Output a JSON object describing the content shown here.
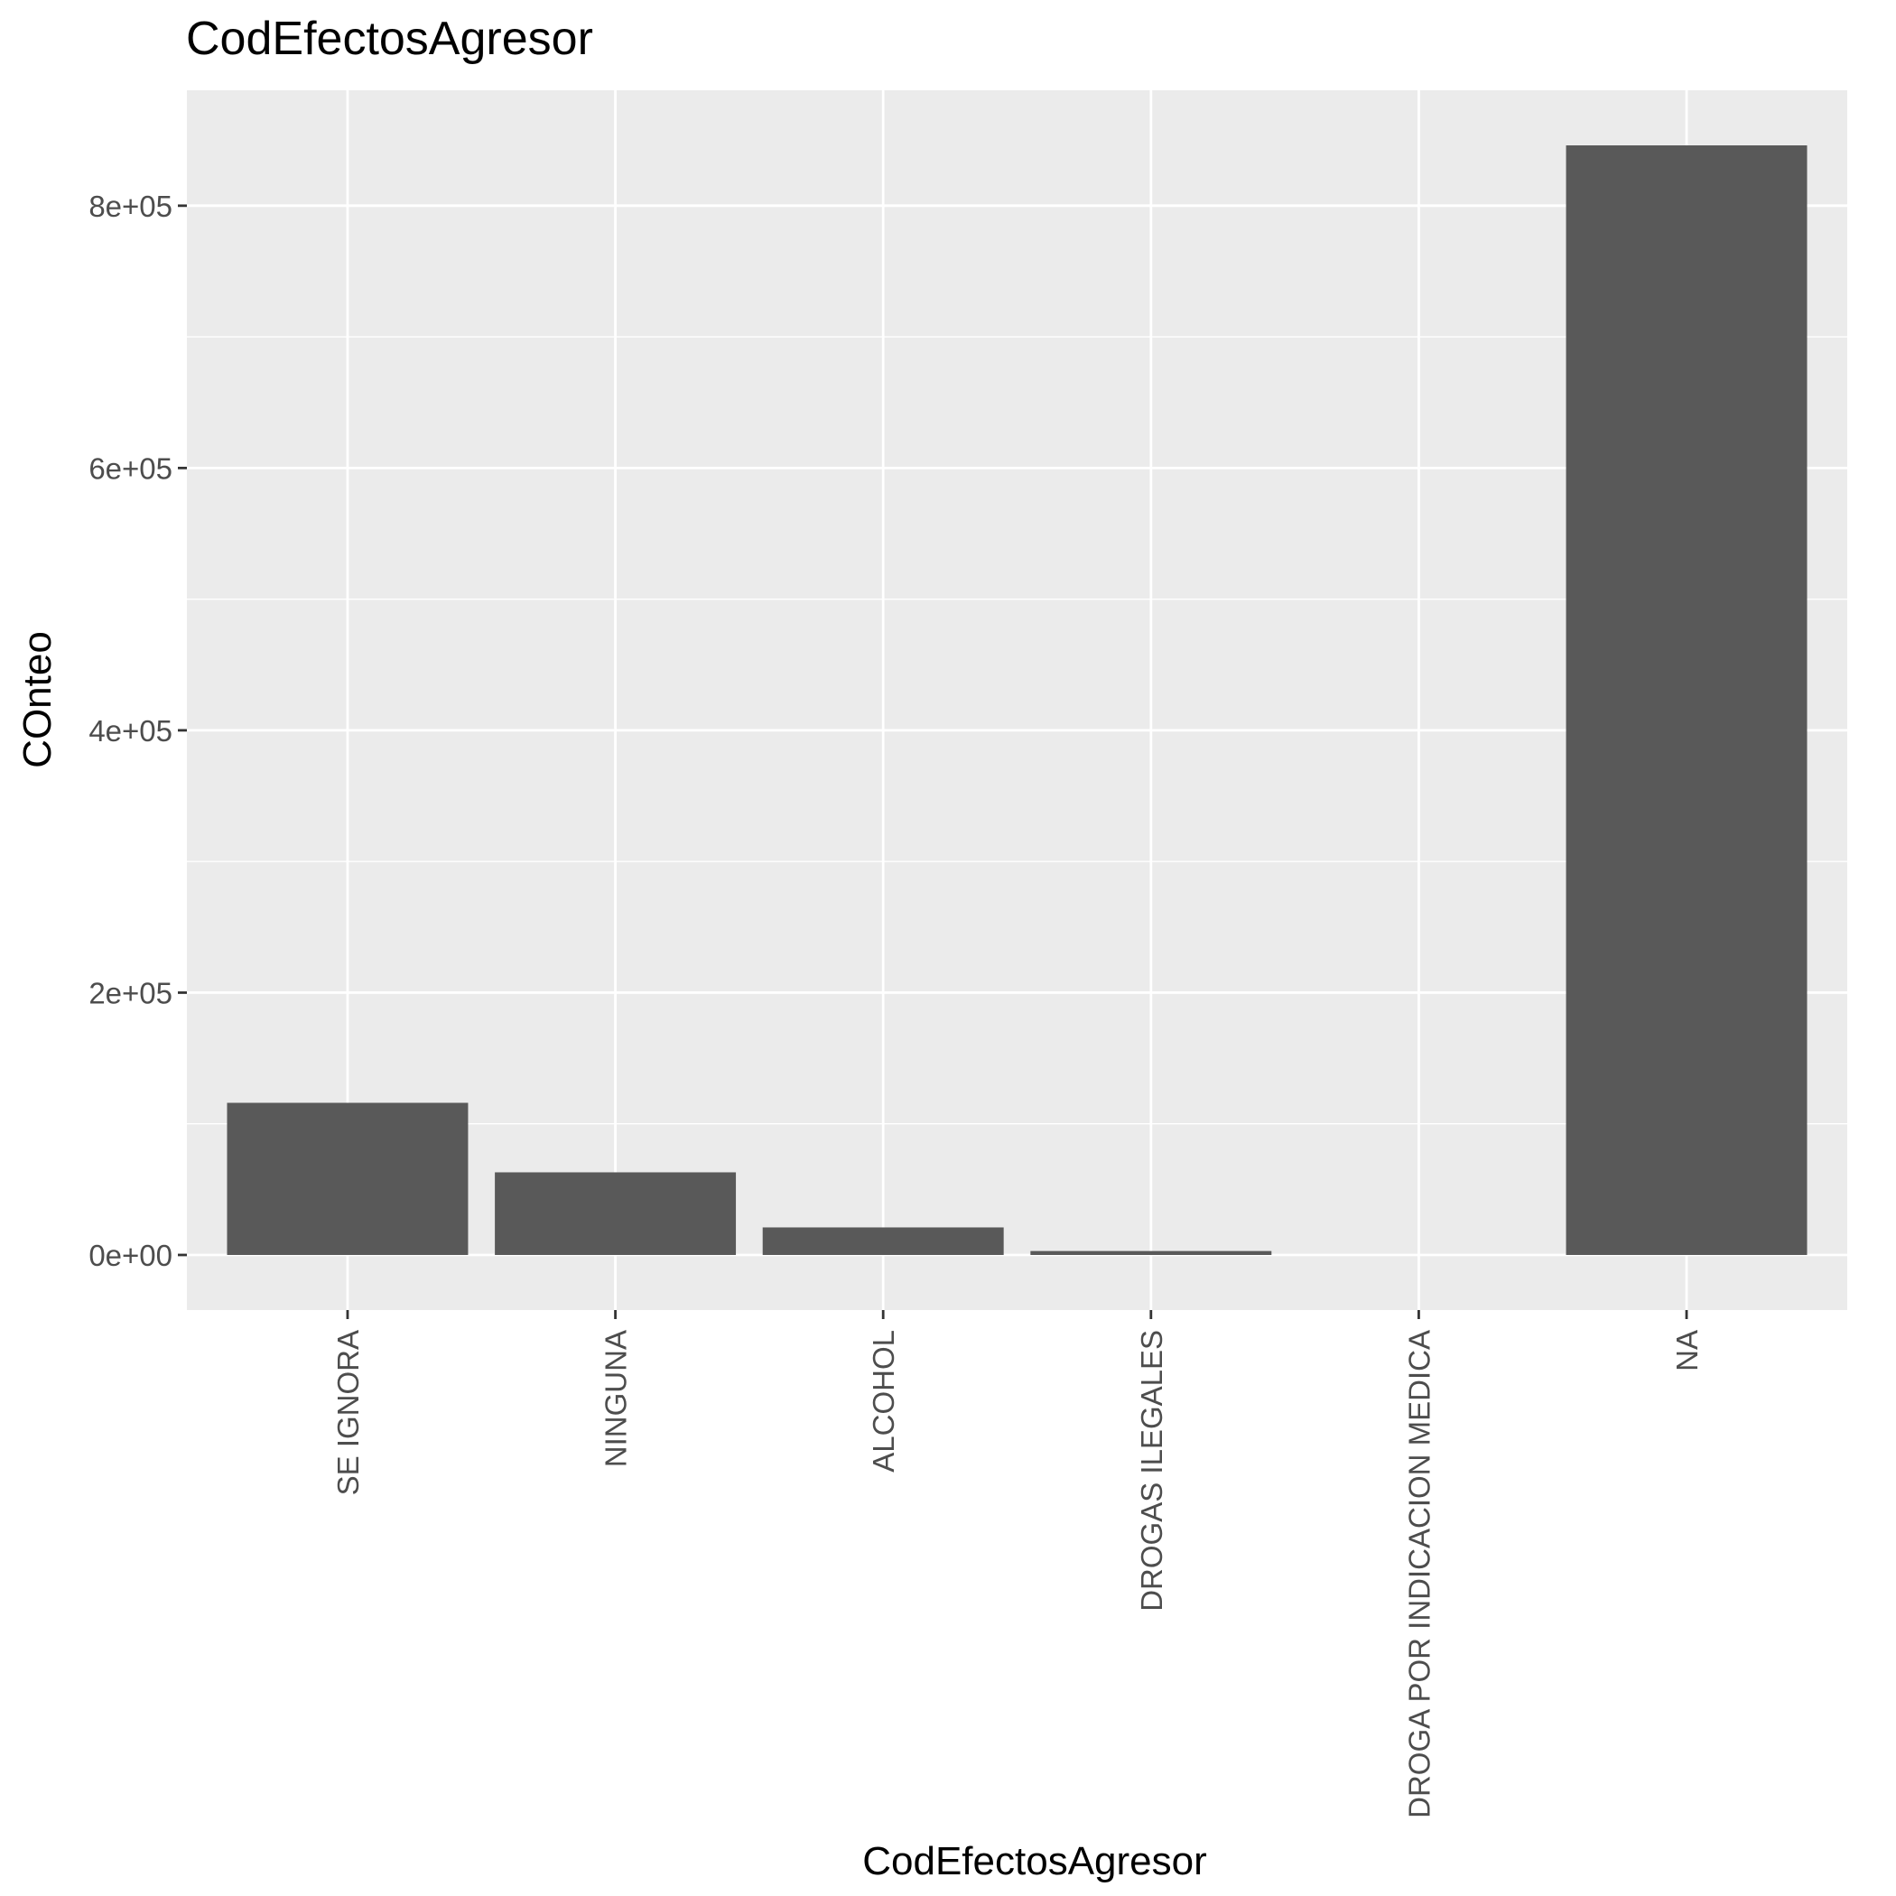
{
  "chart_data": {
    "type": "bar",
    "title": "CodEfectosAgresor",
    "xlabel": "CodEfectosAgresor",
    "ylabel": "COnteo",
    "categories": [
      "SE IGNORA",
      "NINGUNA",
      "ALCOHOL",
      "DROGAS ILEGALES",
      "DROGA POR INDICACION MEDICA",
      "NA"
    ],
    "values": [
      116000,
      63000,
      21000,
      3000,
      0,
      846000
    ],
    "ylim": [
      -42000,
      888000
    ],
    "yticks": [
      0,
      200000,
      400000,
      600000,
      800000
    ],
    "ytick_labels": [
      "0e+00",
      "2e+05",
      "4e+05",
      "6e+05",
      "8e+05"
    ],
    "grid": true,
    "legend": "none",
    "colors": {
      "panel_background": "#ebebeb",
      "gridline": "#ffffff",
      "bar": "#595959",
      "tick_text": "#4d4d4d",
      "tick_mark": "#333333"
    }
  }
}
